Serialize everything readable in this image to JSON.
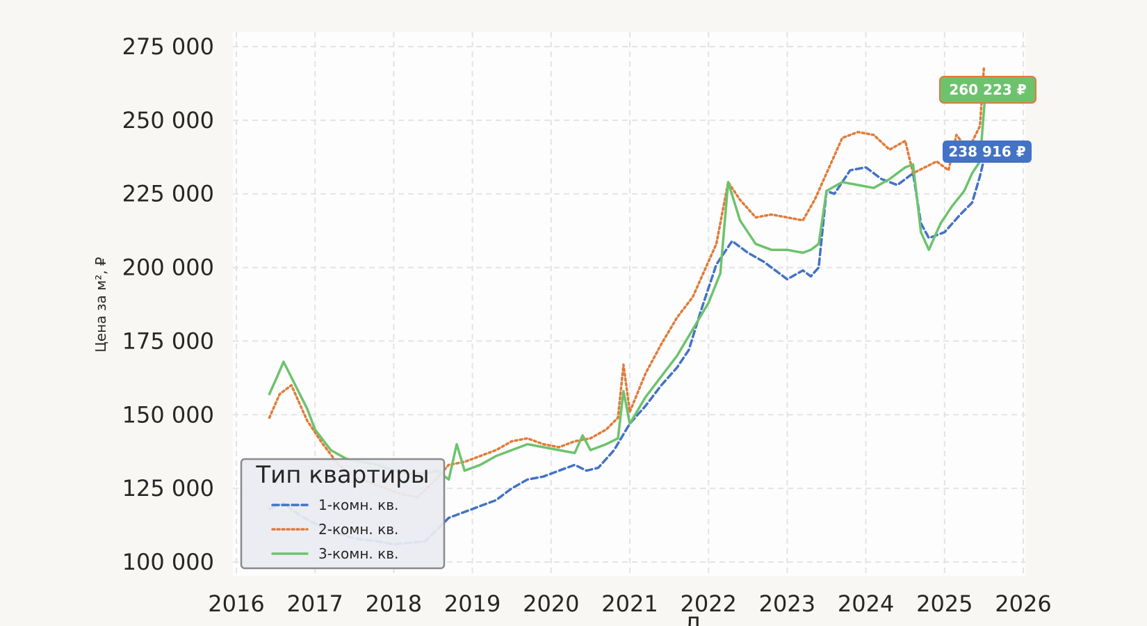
{
  "chart_data": {
    "type": "line",
    "title": "",
    "xlabel": "Д",
    "ylabel": "Цена за м², ₽",
    "xlim": [
      2016,
      2026
    ],
    "ylim": [
      96000,
      276000
    ],
    "x_ticks": [
      "2016",
      "2017",
      "2018",
      "2019",
      "2020",
      "2021",
      "2022",
      "2023",
      "2024",
      "2025",
      "2026"
    ],
    "y_ticks": [
      100000,
      125000,
      150000,
      175000,
      200000,
      225000,
      250000,
      275000
    ],
    "y_tick_labels": [
      "100 000",
      "125 000",
      "150 000",
      "175 000",
      "200 000",
      "225 000",
      "250 000",
      "275 000"
    ],
    "grid": true,
    "legend": {
      "title": "Тип квартиры",
      "position": "lower-left"
    },
    "series": [
      {
        "name": "1-комн. кв.",
        "color": "#4472c4",
        "dash": "dashed",
        "x": [
          2016.42,
          2016.6,
          2016.8,
          2017.0,
          2017.25,
          2017.5,
          2017.8,
          2018.0,
          2018.2,
          2018.4,
          2018.55,
          2018.7,
          2018.9,
          2019.1,
          2019.3,
          2019.5,
          2019.7,
          2019.9,
          2020.1,
          2020.3,
          2020.45,
          2020.6,
          2020.8,
          2021.0,
          2021.2,
          2021.4,
          2021.6,
          2021.75,
          2021.9,
          2022.1,
          2022.3,
          2022.5,
          2022.7,
          2022.9,
          2023.0,
          2023.2,
          2023.3,
          2023.4,
          2023.5,
          2023.6,
          2023.8,
          2024.0,
          2024.2,
          2024.4,
          2024.6,
          2024.7,
          2024.8,
          2025.0,
          2025.2,
          2025.35,
          2025.45,
          2025.52
        ],
        "y": [
          118000,
          120000,
          116000,
          113000,
          110000,
          108000,
          107000,
          106000,
          106500,
          107000,
          111000,
          115000,
          117000,
          119000,
          121000,
          125000,
          128000,
          129000,
          131000,
          133000,
          131000,
          132000,
          138000,
          147000,
          153000,
          160000,
          166000,
          172000,
          185000,
          201000,
          209000,
          205000,
          202000,
          198000,
          196000,
          199000,
          197000,
          200000,
          226000,
          225000,
          233000,
          234000,
          230000,
          228000,
          232000,
          215000,
          210000,
          212000,
          218000,
          222000,
          231000,
          238916
        ]
      },
      {
        "name": "2-комн. кв.",
        "color": "#e07b39",
        "dash": "dotted",
        "x": [
          2016.42,
          2016.55,
          2016.7,
          2016.9,
          2017.1,
          2017.3,
          2017.5,
          2017.7,
          2017.9,
          2018.1,
          2018.3,
          2018.5,
          2018.7,
          2018.9,
          2019.1,
          2019.3,
          2019.5,
          2019.7,
          2019.9,
          2020.1,
          2020.3,
          2020.5,
          2020.7,
          2020.85,
          2020.92,
          2021.0,
          2021.2,
          2021.4,
          2021.6,
          2021.8,
          2021.95,
          2022.1,
          2022.25,
          2022.4,
          2022.6,
          2022.8,
          2023.0,
          2023.2,
          2023.35,
          2023.5,
          2023.7,
          2023.9,
          2024.1,
          2024.3,
          2024.5,
          2024.6,
          2024.75,
          2024.9,
          2025.05,
          2025.15,
          2025.3,
          2025.45,
          2025.5
        ],
        "y": [
          149000,
          157000,
          160000,
          148000,
          140000,
          133000,
          129000,
          127000,
          125000,
          123000,
          122000,
          127000,
          133000,
          134000,
          136000,
          138000,
          141000,
          142000,
          140000,
          139000,
          141000,
          142000,
          145000,
          149000,
          167000,
          151000,
          164000,
          174000,
          183000,
          190000,
          199000,
          208000,
          229000,
          223000,
          217000,
          218000,
          217000,
          216000,
          223000,
          232000,
          244000,
          246000,
          245000,
          240000,
          243000,
          232000,
          234000,
          236000,
          233000,
          245000,
          240000,
          248000,
          268000
        ]
      },
      {
        "name": "3-комн. кв.",
        "color": "#6cc36c",
        "dash": "solid",
        "x": [
          2016.42,
          2016.52,
          2016.6,
          2016.75,
          2016.9,
          2017.0,
          2017.2,
          2017.4,
          2017.6,
          2017.8,
          2018.0,
          2018.2,
          2018.4,
          2018.55,
          2018.7,
          2018.8,
          2018.9,
          2019.1,
          2019.3,
          2019.5,
          2019.7,
          2019.9,
          2020.1,
          2020.3,
          2020.4,
          2020.5,
          2020.7,
          2020.85,
          2020.92,
          2021.0,
          2021.2,
          2021.4,
          2021.6,
          2021.8,
          2022.0,
          2022.15,
          2022.25,
          2022.4,
          2022.6,
          2022.8,
          2023.0,
          2023.2,
          2023.3,
          2023.4,
          2023.5,
          2023.7,
          2023.9,
          2024.1,
          2024.3,
          2024.5,
          2024.6,
          2024.7,
          2024.8,
          2024.95,
          2025.1,
          2025.25,
          2025.35,
          2025.45,
          2025.52
        ],
        "y": [
          157000,
          163000,
          168000,
          160000,
          152000,
          145000,
          138000,
          135000,
          134000,
          133000,
          131000,
          130000,
          130000,
          131000,
          128000,
          140000,
          131000,
          133000,
          136000,
          138000,
          140000,
          139000,
          138000,
          137000,
          143000,
          138000,
          140000,
          142000,
          158000,
          147000,
          156000,
          163000,
          170000,
          179000,
          188000,
          198000,
          229000,
          216000,
          208000,
          206000,
          206000,
          205000,
          206000,
          208000,
          226000,
          229000,
          228000,
          227000,
          230000,
          234000,
          235000,
          212000,
          206000,
          215000,
          221000,
          226000,
          232000,
          236000,
          260223
        ]
      }
    ],
    "annotations": [
      {
        "text": "260 223 ₽",
        "series": "3-комн. кв.",
        "color": "#6cc36c",
        "value": 260223
      },
      {
        "text": "238 916 ₽",
        "series": "1-комн. кв.",
        "color": "#4472c4",
        "value": 238916
      }
    ]
  }
}
